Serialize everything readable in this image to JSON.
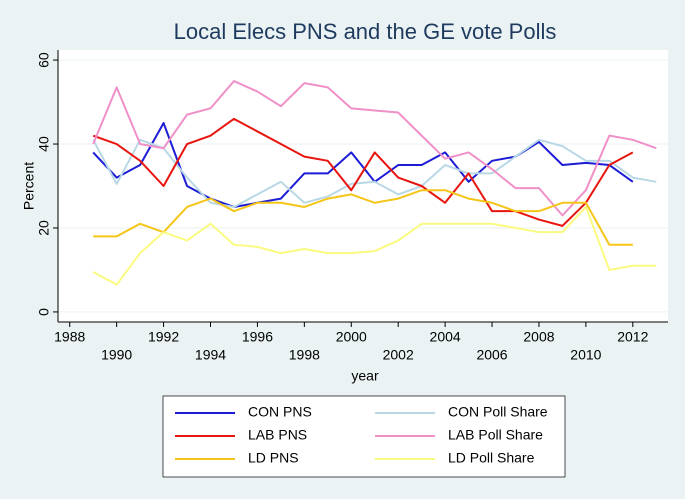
{
  "chart_data": {
    "type": "line",
    "title": "Local Elecs PNS and the GE vote Polls",
    "x_label": "year",
    "y_label": "Percent",
    "x": [
      1989,
      1990,
      1991,
      1992,
      1993,
      1994,
      1995,
      1996,
      1997,
      1998,
      1999,
      2000,
      2001,
      2002,
      2003,
      2004,
      2005,
      2006,
      2007,
      2008,
      2009,
      2010,
      2011,
      2012,
      2013
    ],
    "series": [
      {
        "name": "CON PNS",
        "color": "#1c1cd6",
        "values": [
          38,
          32,
          35,
          45,
          30,
          27,
          25,
          26,
          27,
          33,
          33,
          38,
          31,
          35,
          35,
          38,
          31,
          36,
          37,
          40.5,
          35,
          35.5,
          35,
          31,
          null
        ]
      },
      {
        "name": "CON Poll Share",
        "color": "#b9d8e6",
        "values": [
          41,
          30.5,
          41,
          39,
          32,
          26,
          25,
          28,
          31,
          26,
          27.5,
          30.5,
          31,
          28,
          30,
          35,
          33,
          33,
          37,
          41,
          39.5,
          36,
          36,
          32,
          31
        ]
      },
      {
        "name": "LAB PNS",
        "color": "#e8150f",
        "values": [
          42,
          40,
          36,
          30,
          40,
          42,
          46,
          43,
          40,
          37,
          36,
          29,
          38,
          32,
          30,
          26,
          33,
          24,
          24,
          22,
          20.5,
          26,
          35,
          38,
          null
        ]
      },
      {
        "name": "LAB Poll Share",
        "color": "#f090c8",
        "values": [
          40,
          53.5,
          40,
          39,
          47,
          48.5,
          55,
          52.5,
          49,
          54.5,
          53.5,
          48.5,
          48,
          47.5,
          42,
          36.5,
          38,
          34,
          29.5,
          29.5,
          23,
          29,
          42,
          41,
          39
        ]
      },
      {
        "name": "LD PNS",
        "color": "#f5c518",
        "values": [
          18,
          18,
          21,
          19,
          25,
          27,
          24,
          26,
          26,
          25,
          27,
          28,
          26,
          27,
          29,
          29,
          27,
          26,
          24,
          24,
          26,
          26,
          16,
          16,
          null
        ]
      },
      {
        "name": "LD Poll Share",
        "color": "#fafa80",
        "values": [
          9.5,
          6.5,
          14,
          19,
          17,
          21,
          16,
          15.5,
          14,
          15,
          14,
          14,
          14.5,
          17,
          21,
          21,
          21,
          21,
          20,
          19,
          19,
          25,
          10,
          11,
          11
        ]
      }
    ],
    "xlim": [
      1987.5,
      2013.5
    ],
    "xticks": [
      1988,
      1990,
      1992,
      1994,
      1996,
      1998,
      2000,
      2002,
      2004,
      2006,
      2008,
      2010,
      2012
    ],
    "ylim": [
      -2.4,
      62.4
    ],
    "yticks": [
      0,
      20,
      40,
      60
    ],
    "grid": true,
    "legend": "bottom"
  }
}
